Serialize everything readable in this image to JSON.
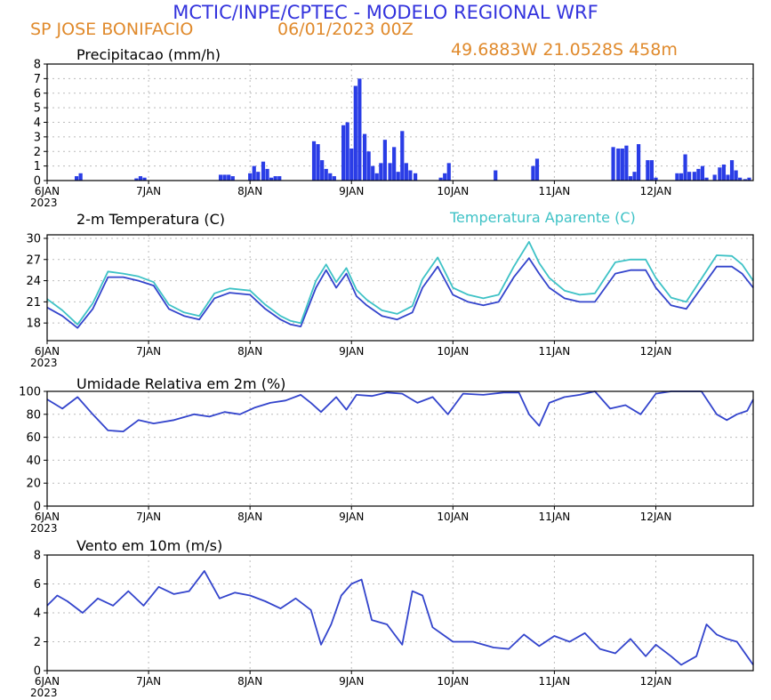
{
  "header": {
    "title": "MCTIC/INPE/CPTEC - MODELO REGIONAL WRF",
    "station": "SP JOSE BONIFACIO",
    "run": "06/01/2023 00Z",
    "coords": "49.6883W 21.0528S 458m"
  },
  "colors": {
    "header": "#3333dd",
    "orange": "#e08a2c",
    "series_blue": "#3344cc",
    "bar_blue": "#2a3de6",
    "apparent_cyan": "#3ec2c6",
    "grid": "#bbbbbb"
  },
  "xaxis": {
    "ticks": [
      6,
      7,
      8,
      9,
      10,
      11,
      12
    ],
    "labels": [
      "6JAN",
      "7JAN",
      "8JAN",
      "9JAN",
      "10JAN",
      "11JAN",
      "12JAN"
    ],
    "year_label": "2023",
    "xlim": [
      6.0,
      12.96
    ]
  },
  "chart_data": [
    {
      "type": "bar",
      "title": "Precipitacao (mm/h)",
      "ylim": [
        0,
        8
      ],
      "yticks": [
        0,
        1,
        2,
        3,
        4,
        5,
        6,
        7,
        8
      ],
      "x": [
        6.29,
        6.33,
        6.88,
        6.92,
        6.96,
        7.71,
        7.75,
        7.79,
        7.83,
        8.0,
        8.04,
        8.08,
        8.13,
        8.17,
        8.21,
        8.25,
        8.29,
        8.63,
        8.67,
        8.71,
        8.75,
        8.79,
        8.83,
        8.92,
        8.96,
        9.0,
        9.04,
        9.08,
        9.13,
        9.17,
        9.21,
        9.25,
        9.29,
        9.33,
        9.38,
        9.42,
        9.46,
        9.5,
        9.54,
        9.58,
        9.63,
        9.88,
        9.92,
        9.96,
        10.42,
        10.79,
        10.83,
        11.58,
        11.63,
        11.67,
        11.71,
        11.75,
        11.79,
        11.83,
        11.92,
        11.96,
        12.0,
        12.21,
        12.25,
        12.29,
        12.33,
        12.38,
        12.42,
        12.46,
        12.5,
        12.58,
        12.63,
        12.67,
        12.71,
        12.75,
        12.79,
        12.83,
        12.88,
        12.92
      ],
      "values": [
        0.3,
        0.5,
        0.15,
        0.3,
        0.2,
        0.4,
        0.4,
        0.4,
        0.3,
        0.5,
        1.0,
        0.6,
        1.3,
        0.8,
        0.2,
        0.3,
        0.3,
        2.7,
        2.5,
        1.4,
        0.8,
        0.5,
        0.3,
        3.8,
        4.0,
        2.2,
        6.5,
        7.0,
        3.2,
        2.0,
        1.0,
        0.5,
        1.2,
        2.8,
        1.2,
        2.3,
        0.6,
        3.4,
        1.2,
        0.7,
        0.5,
        0.2,
        0.5,
        1.2,
        0.7,
        1.0,
        1.5,
        2.3,
        2.2,
        2.2,
        2.4,
        0.3,
        0.6,
        2.5,
        1.4,
        1.4,
        0.2,
        0.5,
        0.5,
        1.8,
        0.6,
        0.6,
        0.8,
        1.0,
        0.2,
        0.4,
        0.9,
        1.1,
        0.4,
        1.4,
        0.7,
        0.2,
        0.1,
        0.2
      ]
    },
    {
      "type": "line",
      "title": "2-m Temperatura (C)",
      "ylim": [
        15.5,
        30.5
      ],
      "yticks": [
        18,
        21,
        24,
        27,
        30
      ],
      "series": [
        {
          "name": "2-m Temperatura (C)",
          "x": [
            6.0,
            6.15,
            6.3,
            6.45,
            6.6,
            6.75,
            6.9,
            7.05,
            7.2,
            7.35,
            7.5,
            7.65,
            7.8,
            8.0,
            8.15,
            8.3,
            8.4,
            8.5,
            8.65,
            8.75,
            8.85,
            8.95,
            9.05,
            9.15,
            9.3,
            9.45,
            9.6,
            9.7,
            9.85,
            10.0,
            10.15,
            10.3,
            10.45,
            10.6,
            10.75,
            10.85,
            10.95,
            11.1,
            11.25,
            11.4,
            11.6,
            11.75,
            11.9,
            12.0,
            12.15,
            12.3,
            12.45,
            12.6,
            12.75,
            12.85,
            12.96
          ],
          "values": [
            20.2,
            19,
            17.3,
            20,
            24.5,
            24.5,
            24,
            23.3,
            20,
            19,
            18.5,
            21.5,
            22.3,
            22,
            20,
            18.5,
            17.8,
            17.5,
            23,
            25.5,
            23,
            25,
            21.8,
            20.5,
            19,
            18.5,
            19.5,
            23,
            26,
            22,
            21,
            20.5,
            21,
            24.5,
            27.2,
            25,
            23,
            21.5,
            21,
            21,
            25,
            25.5,
            25.5,
            23,
            20.5,
            20,
            23,
            26,
            26,
            25,
            23
          ]
        },
        {
          "name": "Temperatura Aparente (C)",
          "x": [
            6.0,
            6.15,
            6.3,
            6.45,
            6.6,
            6.75,
            6.9,
            7.05,
            7.2,
            7.35,
            7.5,
            7.65,
            7.8,
            8.0,
            8.15,
            8.3,
            8.4,
            8.5,
            8.65,
            8.75,
            8.85,
            8.95,
            9.05,
            9.15,
            9.3,
            9.45,
            9.6,
            9.7,
            9.85,
            10.0,
            10.15,
            10.3,
            10.45,
            10.6,
            10.75,
            10.85,
            10.95,
            11.1,
            11.25,
            11.4,
            11.6,
            11.75,
            11.9,
            12.0,
            12.15,
            12.3,
            12.45,
            12.6,
            12.75,
            12.85,
            12.96
          ],
          "values": [
            21.4,
            19.8,
            17.8,
            20.8,
            25.3,
            25,
            24.6,
            23.8,
            20.6,
            19.5,
            19,
            22.2,
            22.9,
            22.6,
            20.6,
            19,
            18.3,
            18,
            24,
            26.3,
            23.8,
            25.8,
            22.7,
            21.3,
            19.8,
            19.3,
            20.4,
            24.2,
            27.3,
            23,
            22,
            21.5,
            22,
            26,
            29.5,
            26.5,
            24.4,
            22.6,
            22,
            22.2,
            26.6,
            27,
            27,
            24.4,
            21.6,
            21,
            24.3,
            27.6,
            27.5,
            26.3,
            24
          ]
        }
      ]
    },
    {
      "type": "line",
      "title": "Umidade Relativa em 2m (%)",
      "ylim": [
        0,
        100
      ],
      "yticks": [
        0,
        20,
        40,
        60,
        80,
        100
      ],
      "series": [
        {
          "name": "Umidade Relativa em 2m (%)",
          "x": [
            6.0,
            6.15,
            6.3,
            6.45,
            6.6,
            6.75,
            6.9,
            7.05,
            7.25,
            7.45,
            7.6,
            7.75,
            7.9,
            8.05,
            8.2,
            8.35,
            8.5,
            8.6,
            8.7,
            8.85,
            8.95,
            9.05,
            9.2,
            9.35,
            9.5,
            9.65,
            9.8,
            9.95,
            10.1,
            10.3,
            10.5,
            10.65,
            10.75,
            10.85,
            10.95,
            11.1,
            11.25,
            11.4,
            11.55,
            11.7,
            11.85,
            12.0,
            12.15,
            12.3,
            12.45,
            12.6,
            12.7,
            12.8,
            12.9,
            12.96
          ],
          "values": [
            93,
            85,
            95,
            80,
            66,
            65,
            75,
            72,
            75,
            80,
            78,
            82,
            80,
            86,
            90,
            92,
            97,
            90,
            82,
            95,
            84,
            97,
            96,
            99,
            98,
            90,
            95,
            80,
            98,
            97,
            99,
            99,
            80,
            70,
            90,
            95,
            97,
            100,
            85,
            88,
            80,
            98,
            100,
            100,
            100,
            80,
            75,
            80,
            83,
            93
          ]
        }
      ]
    },
    {
      "type": "line",
      "title": "Vento em 10m (m/s)",
      "ylim": [
        0,
        8
      ],
      "yticks": [
        0,
        2,
        4,
        6,
        8
      ],
      "series": [
        {
          "name": "Vento em 10m (m/s)",
          "x": [
            6.0,
            6.1,
            6.2,
            6.35,
            6.5,
            6.65,
            6.8,
            6.95,
            7.1,
            7.25,
            7.4,
            7.55,
            7.7,
            7.85,
            8.0,
            8.15,
            8.3,
            8.45,
            8.6,
            8.7,
            8.8,
            8.9,
            9.0,
            9.1,
            9.2,
            9.35,
            9.5,
            9.6,
            9.7,
            9.8,
            9.9,
            10.0,
            10.2,
            10.4,
            10.55,
            10.7,
            10.85,
            11.0,
            11.15,
            11.3,
            11.45,
            11.6,
            11.75,
            11.9,
            12.0,
            12.15,
            12.25,
            12.4,
            12.5,
            12.6,
            12.7,
            12.8,
            12.9,
            12.96
          ],
          "values": [
            4.5,
            5.2,
            4.8,
            4.0,
            5.0,
            4.5,
            5.5,
            4.5,
            5.8,
            5.3,
            5.5,
            6.9,
            5.0,
            5.4,
            5.2,
            4.8,
            4.3,
            5.0,
            4.2,
            1.8,
            3.2,
            5.2,
            6.0,
            6.3,
            3.5,
            3.2,
            1.8,
            5.5,
            5.2,
            3.0,
            2.5,
            2.0,
            2.0,
            1.6,
            1.5,
            2.5,
            1.7,
            2.4,
            2.0,
            2.6,
            1.5,
            1.2,
            2.2,
            1.0,
            1.8,
            1.0,
            0.4,
            1.0,
            3.2,
            2.5,
            2.2,
            2.0,
            1.0,
            0.4
          ]
        }
      ]
    }
  ]
}
